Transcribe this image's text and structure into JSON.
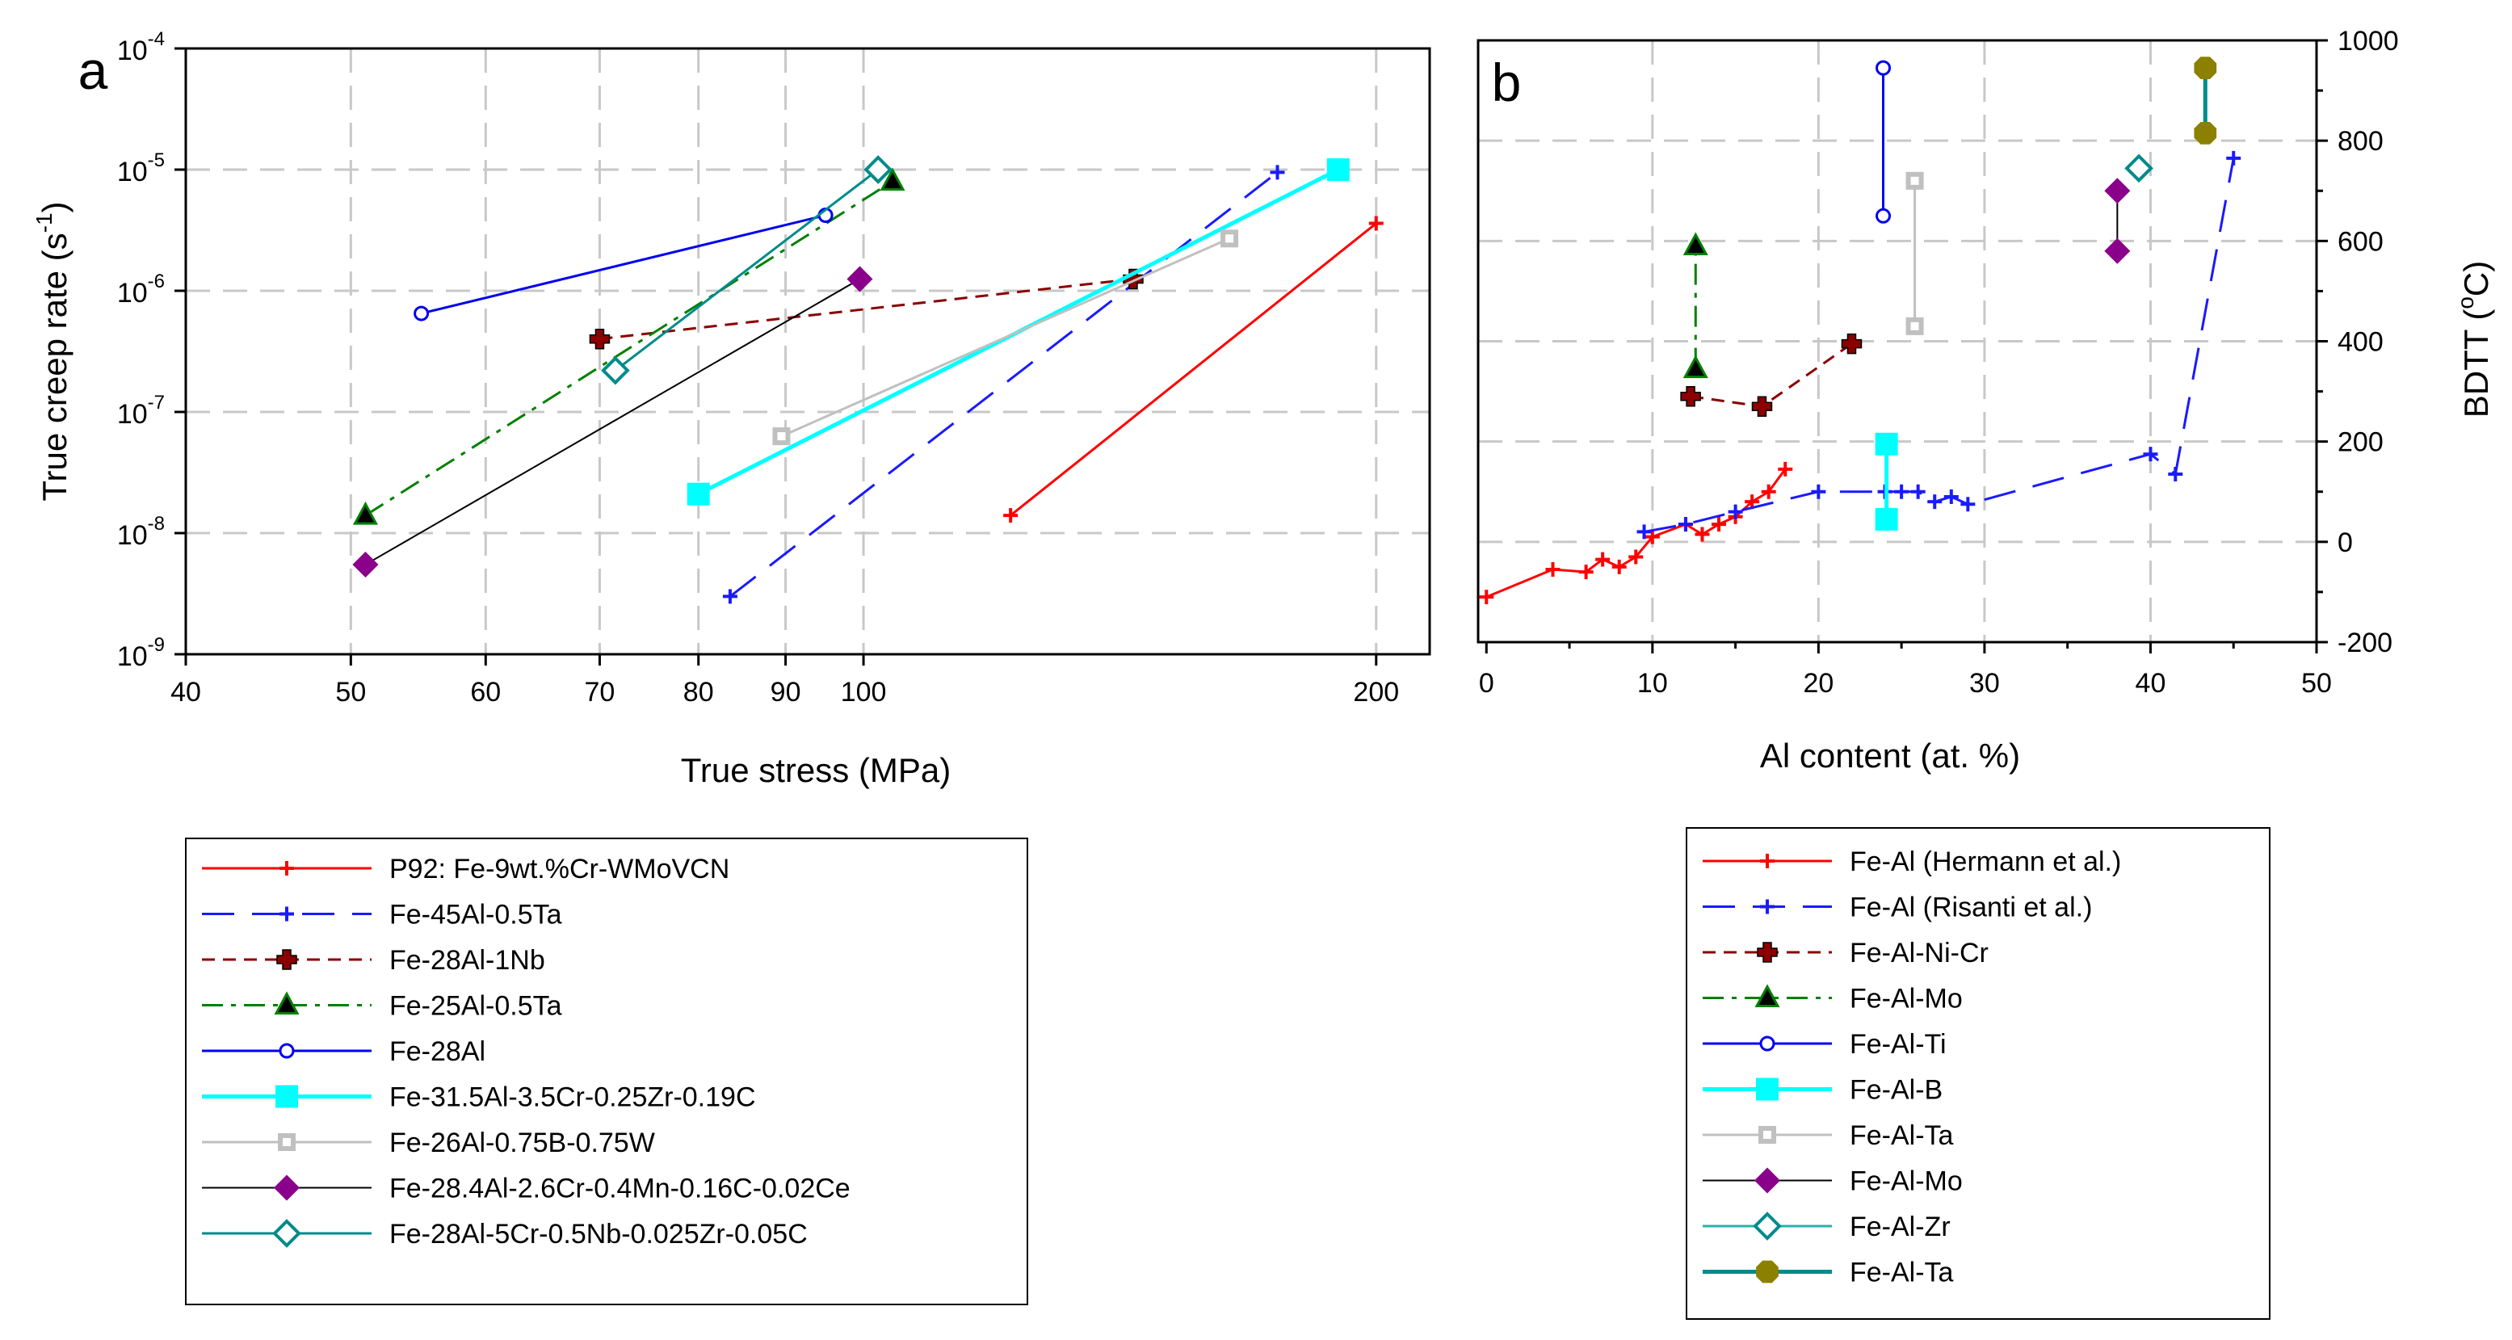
{
  "chart_data": [
    {
      "type": "line",
      "panel": "a",
      "xlabel": "True stress (MPa)",
      "ylabel_main": "True creep rate (s",
      "ylabel_sup": "-1",
      "ylabel_end": ")",
      "xscale": "log",
      "yscale": "log",
      "xlim": [
        40,
        215
      ],
      "ylim_exp": [
        -9,
        -4
      ],
      "xticks": [
        40,
        50,
        60,
        70,
        80,
        90,
        100,
        200
      ],
      "xtick_labels": [
        "40",
        "50",
        "60",
        "70",
        "80",
        "90",
        "100",
        "200"
      ],
      "yticks": [
        -9,
        -8,
        -7,
        -6,
        -5,
        -4
      ],
      "ytick_base": "10",
      "ytick_exps": [
        "-9",
        "-8",
        "-7",
        "-6",
        "-5",
        "-4"
      ],
      "grid": true,
      "legend_position": "below",
      "series": [
        {
          "name": "P92: Fe-9wt.%Cr-WMoVCN",
          "color": "#ff0000",
          "dash": "solid",
          "marker": "plus",
          "width": 3,
          "points": [
            [
              122,
              1.4e-08
            ],
            [
              200,
              3.6e-06
            ]
          ]
        },
        {
          "name": "Fe-45Al-0.5Ta",
          "color": "#1a1aff",
          "dash": "longdash",
          "marker": "plus",
          "width": 3,
          "points": [
            [
              83.5,
              3e-09
            ],
            [
              175,
              9.5e-06
            ]
          ]
        },
        {
          "name": "Fe-28Al-1Nb",
          "color": "#8b0000",
          "dash": "dash",
          "marker": "cross",
          "width": 3,
          "points": [
            [
              70,
              4e-07
            ],
            [
              144,
              1.25e-06
            ]
          ]
        },
        {
          "name": "Fe-25Al-0.5Ta",
          "color": "#008000",
          "dash": "dashdot",
          "marker": "triangle",
          "width": 3,
          "points": [
            [
              51,
              1.4e-08
            ],
            [
              104,
              8e-06
            ]
          ]
        },
        {
          "name": "Fe-28Al",
          "color": "#0000ee",
          "dash": "solid",
          "marker": "opencircle",
          "width": 3,
          "points": [
            [
              55,
              6.5e-07
            ],
            [
              95,
              4.2e-06
            ]
          ]
        },
        {
          "name": "Fe-31.5Al-3.5Cr-0.25Zr-0.19C",
          "color": "#00ffff",
          "dash": "solid",
          "marker": "square",
          "width": 5,
          "points": [
            [
              80,
              2.1e-08
            ],
            [
              190,
              1e-05
            ]
          ]
        },
        {
          "name": "Fe-26Al-0.75B-0.75W",
          "color": "#c0c0c0",
          "dash": "solid",
          "marker": "opensquare",
          "width": 3,
          "points": [
            [
              89.5,
              6.3e-08
            ],
            [
              164,
              2.7e-06
            ]
          ]
        },
        {
          "name": "Fe-28.4Al-2.6Cr-0.4Mn-0.16C-0.02Ce",
          "color": "#000000",
          "dash": "solid",
          "marker": "diamond",
          "markercolor": "#8b008b",
          "width": 2,
          "points": [
            [
              51,
              5.5e-09
            ],
            [
              99.5,
              1.25e-06
            ]
          ]
        },
        {
          "name": "Fe-28Al-5Cr-0.5Nb-0.025Zr-0.05C",
          "color": "#008b8b",
          "dash": "solid",
          "marker": "opendiamond",
          "width": 3,
          "points": [
            [
              71.5,
              2.2e-07
            ],
            [
              102,
              1e-05
            ]
          ]
        }
      ]
    },
    {
      "type": "line",
      "panel": "b",
      "xlabel": "Al content (at. %)",
      "ylabel_main": "BDTT (",
      "ylabel_sup": "o",
      "ylabel_end": "C)",
      "xlim": [
        -0.5,
        50
      ],
      "ylim": [
        -200,
        1000
      ],
      "xticks": [
        0,
        10,
        20,
        30,
        40,
        50
      ],
      "xtick_labels": [
        "0",
        "10",
        "20",
        "30",
        "40",
        "50"
      ],
      "yticks": [
        -200,
        0,
        200,
        400,
        600,
        800,
        1000
      ],
      "ytick_labels": [
        "-200",
        "0",
        "200",
        "400",
        "600",
        "800",
        "1000"
      ],
      "grid": true,
      "legend_position": "below",
      "series": [
        {
          "name": "Fe-Al (Hermann et al.)",
          "color": "#ff0000",
          "dash": "solid",
          "marker": "plus",
          "width": 3,
          "points": [
            [
              0,
              -110
            ],
            [
              4,
              -55
            ],
            [
              6,
              -60
            ],
            [
              7,
              -35
            ],
            [
              8,
              -50
            ],
            [
              9,
              -30
            ],
            [
              10,
              10
            ],
            [
              12,
              35
            ],
            [
              13,
              15
            ],
            [
              14,
              35
            ],
            [
              15,
              50
            ],
            [
              16,
              80
            ],
            [
              17,
              100
            ],
            [
              18,
              145
            ]
          ]
        },
        {
          "name": "Fe-Al (Risanti et al.)",
          "color": "#1a1aff",
          "dash": "longdash",
          "marker": "plus",
          "width": 3,
          "points": [
            [
              9.5,
              20
            ],
            [
              12,
              35
            ],
            [
              15,
              60
            ],
            [
              20,
              100
            ],
            [
              24,
              100
            ],
            [
              25,
              100
            ],
            [
              26,
              100
            ],
            [
              27,
              80
            ],
            [
              28,
              90
            ],
            [
              29,
              75
            ],
            [
              40,
              175
            ],
            [
              41.5,
              135
            ],
            [
              45,
              765
            ]
          ]
        },
        {
          "name": "Fe-Al-Ni-Cr",
          "color": "#8b0000",
          "dash": "dash",
          "marker": "cross",
          "width": 3,
          "points": [
            [
              12.3,
              290
            ],
            [
              16.6,
              270
            ],
            [
              22,
              395
            ]
          ]
        },
        {
          "name": "Fe-Al-Mo",
          "color": "#008000",
          "dash": "dashdot",
          "marker": "triangle",
          "width": 3,
          "points": [
            [
              12.6,
              345
            ],
            [
              12.6,
              590
            ]
          ]
        },
        {
          "name": "Fe-Al-Ti",
          "color": "#0000ee",
          "dash": "solid",
          "marker": "opencircle",
          "width": 3,
          "points": [
            [
              23.9,
              945
            ],
            [
              23.9,
              650
            ]
          ]
        },
        {
          "name": "Fe-Al-B",
          "color": "#00ffff",
          "dash": "solid",
          "marker": "square",
          "width": 5,
          "points": [
            [
              24.1,
              195
            ],
            [
              24.1,
              45
            ]
          ]
        },
        {
          "name": "Fe-Al-Ta",
          "color": "#c0c0c0",
          "dash": "solid",
          "marker": "opensquare",
          "width": 3,
          "points": [
            [
              25.8,
              720
            ],
            [
              25.8,
              430
            ]
          ]
        },
        {
          "name": "Fe-Al-Mo",
          "color": "#000000",
          "dash": "solid",
          "marker": "diamond",
          "markercolor": "#8b008b",
          "width": 2,
          "points": [
            [
              38,
              700
            ],
            [
              38,
              580
            ]
          ]
        },
        {
          "name": "Fe-Al-Zr",
          "color": "#2ab0a8",
          "dash": "solid",
          "marker": "opendiamond",
          "markercolor": "#008b8b",
          "width": 3,
          "points": [
            [
              39.3,
              745
            ]
          ]
        },
        {
          "name": "Fe-Al-Ta",
          "color": "#008b8b",
          "dash": "solid",
          "marker": "octagon",
          "markercolor": "#8b8000",
          "width": 5,
          "points": [
            [
              43.3,
              945
            ],
            [
              43.3,
              815
            ]
          ]
        }
      ]
    }
  ]
}
